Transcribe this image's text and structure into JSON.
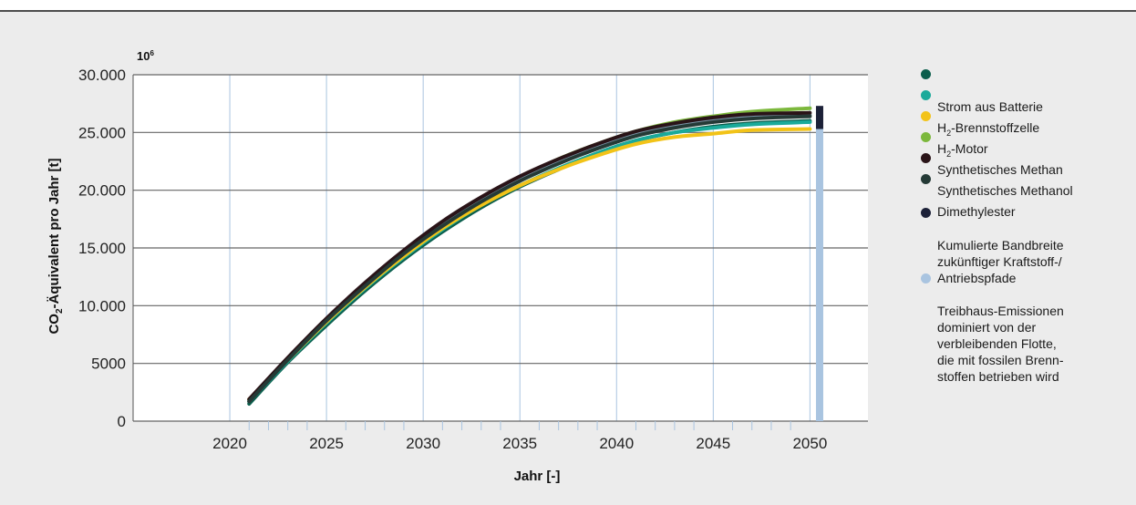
{
  "chart_data": {
    "type": "line",
    "title": "",
    "xlabel": "Jahr [-]",
    "ylabel_parts": [
      "CO",
      "2",
      "-Äquivalent pro Jahr [t]"
    ],
    "y_multiplier_label": "10",
    "y_multiplier_exp": "6",
    "xlim": [
      2015,
      2053
    ],
    "ylim": [
      0,
      30000
    ],
    "x_ticks": [
      2020,
      2025,
      2030,
      2035,
      2040,
      2045,
      2050
    ],
    "x_tick_labels": [
      "2020",
      "2025",
      "2030",
      "2035",
      "2040",
      "2045",
      "2050"
    ],
    "y_ticks": [
      0,
      5000,
      10000,
      15000,
      20000,
      25000,
      30000
    ],
    "y_tick_labels": [
      "0",
      "5000",
      "10.000",
      "15.000",
      "20.000",
      "25.000",
      "30.000"
    ],
    "grid": true,
    "legend_position": "right",
    "x": [
      2021,
      2023,
      2025,
      2027,
      2029,
      2031,
      2033,
      2035,
      2037,
      2039,
      2041,
      2043,
      2045,
      2047,
      2050
    ],
    "series": [
      {
        "name": "Strom aus Batterie",
        "color": "#0b5e4c",
        "values": [
          1500,
          5100,
          8300,
          11300,
          14000,
          16400,
          18500,
          20300,
          21800,
          23200,
          24300,
          25000,
          25500,
          25800,
          26000
        ]
      },
      {
        "name": "H2-Brennstoffzelle",
        "color": "#1aaa9a",
        "values": [
          1700,
          5200,
          8500,
          11500,
          14200,
          16600,
          18700,
          20400,
          21900,
          23200,
          24300,
          25000,
          25400,
          25700,
          25900
        ]
      },
      {
        "name": "H2-Motor",
        "color": "#f2c318",
        "values": [
          1900,
          5300,
          8600,
          11600,
          14300,
          16700,
          18700,
          20400,
          21800,
          23000,
          24000,
          24600,
          24900,
          25200,
          25300
        ]
      },
      {
        "name": "Synthetisches Methan",
        "color": "#7cb83c",
        "values": [
          1800,
          5400,
          8800,
          11900,
          14700,
          17200,
          19300,
          21100,
          22700,
          24000,
          25100,
          25900,
          26400,
          26800,
          27100
        ]
      },
      {
        "name": "Synthetisches Methanol",
        "color": "#7a96a8",
        "values": [
          1800,
          5400,
          8800,
          11800,
          14600,
          17100,
          19200,
          21000,
          22500,
          23800,
          24900,
          25600,
          26100,
          26400,
          26500
        ]
      },
      {
        "name": "Synthetisches Methanol",
        "color": "#2a1418",
        "values": [
          1900,
          5500,
          8900,
          12000,
          14800,
          17300,
          19400,
          21200,
          22700,
          24000,
          25100,
          25800,
          26300,
          26600,
          26700
        ]
      },
      {
        "name": "Dimethylester",
        "color": "#253a36",
        "values": [
          1700,
          5300,
          8700,
          11700,
          14500,
          16900,
          19000,
          20800,
          22300,
          23600,
          24700,
          25400,
          25900,
          26200,
          26400
        ]
      }
    ],
    "band": {
      "x": 2050.5,
      "y_min": 25300,
      "y_max": 27300,
      "color": "#1c2138"
    },
    "fossil_bar": {
      "x": 2050.5,
      "y_min": 0,
      "y_max": 25300,
      "color": "#a9c4e0"
    }
  },
  "legend": [
    {
      "text": "Strom aus Batterie",
      "color": "#0b5e4c"
    },
    {
      "text_pre": "H",
      "text_sub": "2",
      "text_post": "-Brennstoffzelle",
      "color": "#1aaa9a"
    },
    {
      "text_pre": "H",
      "text_sub": "2",
      "text_post": "-Motor",
      "color": "#f2c318"
    },
    {
      "text": "Synthetisches Methan",
      "color": "#7cb83c"
    },
    {
      "text": "Synthetisches Methanol",
      "color": "#2a1418"
    },
    {
      "text": "Dimethylester",
      "color": "#253a36"
    },
    {
      "text": "Kumulierte Bandbreite\nzukünftiger Kraftstoff-/\nAntriebspfade",
      "color": "#1c2138"
    },
    {
      "text": "Treibhaus-Emissionen\ndominiert von der\nverbleibenden Flotte,\ndie mit fossilen Brenn-\nstoffen betrieben wird",
      "color": "#a9c4e0"
    }
  ]
}
